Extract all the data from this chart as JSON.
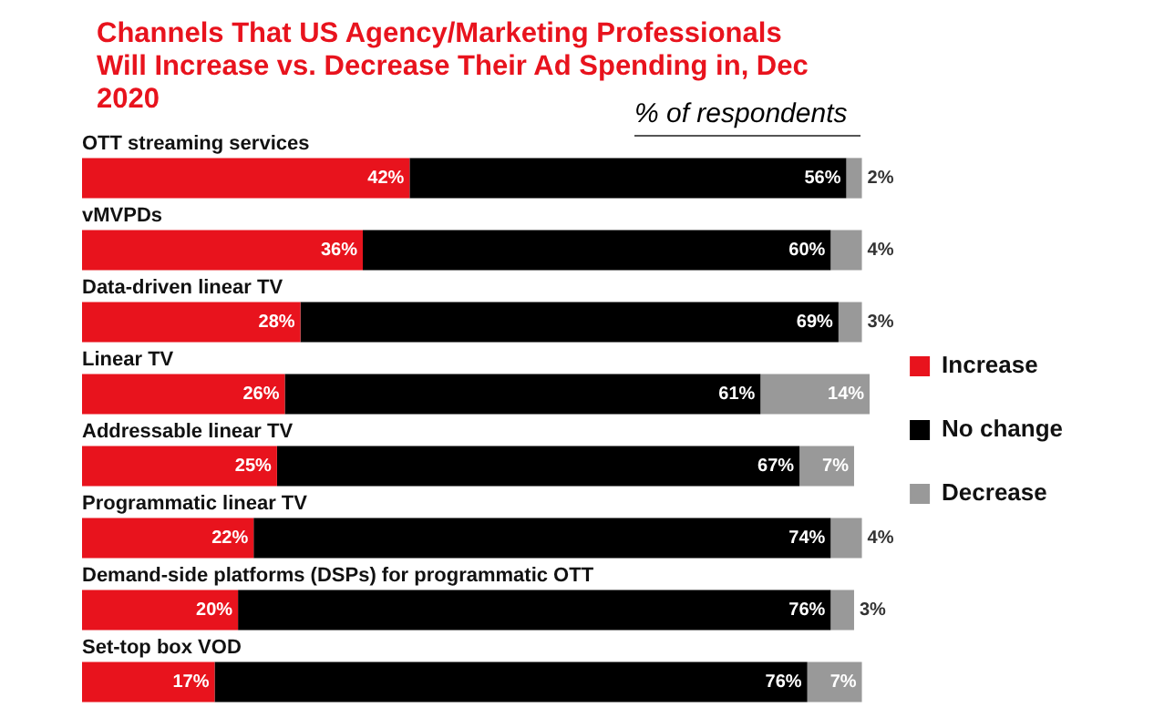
{
  "chart_data": {
    "type": "bar",
    "orientation": "horizontal",
    "stacked": true,
    "title": "Channels That US Agency/Marketing Professionals Will Increase vs. Decrease Their Ad Spending in, Dec 2020",
    "subtitle": "% of respondents",
    "categories": [
      "OTT streaming services",
      "vMVPDs",
      "Data-driven linear TV",
      "Linear TV",
      "Addressable linear TV",
      "Programmatic linear TV",
      "Demand-side platforms (DSPs) for programmatic OTT",
      "Set-top box VOD"
    ],
    "series": [
      {
        "name": "Increase",
        "color": "#e8131d",
        "values": [
          42,
          36,
          28,
          26,
          25,
          22,
          20,
          17
        ],
        "value_labels": [
          "42%",
          "36%",
          "28%",
          "26%",
          "25%",
          "22%",
          "20%",
          "17%"
        ]
      },
      {
        "name": "No change",
        "color": "#000000",
        "values": [
          56,
          60,
          69,
          61,
          67,
          74,
          76,
          76
        ],
        "value_labels": [
          "56%",
          "60%",
          "69%",
          "61%",
          "67%",
          "74%",
          "76%",
          "76%"
        ]
      },
      {
        "name": "Decrease",
        "color": "#999999",
        "values": [
          2,
          4,
          3,
          14,
          7,
          4,
          3,
          7
        ],
        "value_labels": [
          "2%",
          "4%",
          "3%",
          "14%",
          "7%",
          "4%",
          "3%",
          "7%"
        ]
      }
    ],
    "legend": "right"
  }
}
